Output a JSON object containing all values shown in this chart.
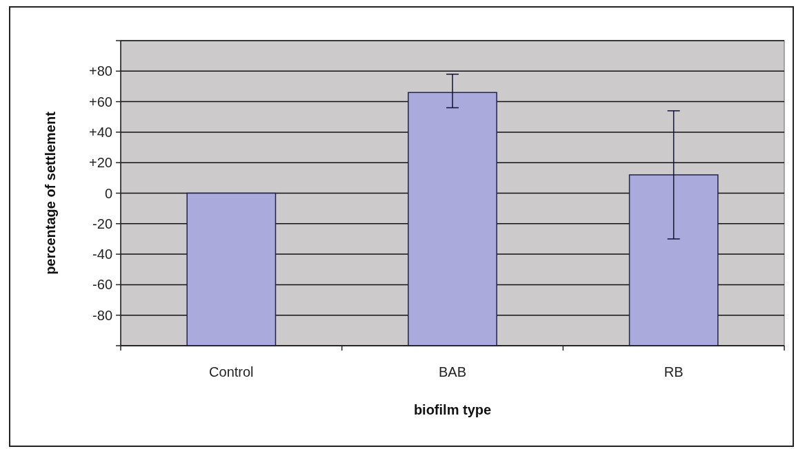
{
  "chart_data": {
    "type": "bar",
    "xlabel": "biofilm type",
    "ylabel": "percentage of settlement",
    "categories": [
      "Control",
      "BAB",
      "RB"
    ],
    "values": [
      100,
      166,
      112
    ],
    "base": [
      -100,
      -100,
      -100
    ],
    "errors": [
      null,
      [
        56,
        78
      ],
      [
        -30,
        54
      ]
    ],
    "color": "#aaaadc",
    "ylim": [
      -100,
      100
    ],
    "yticks": [
      {
        "value": -100,
        "label": null
      },
      {
        "value": -80,
        "label": "-80"
      },
      {
        "value": -60,
        "label": "-60"
      },
      {
        "value": -40,
        "label": "-40"
      },
      {
        "value": -20,
        "label": "-20"
      },
      0,
      {
        "value": 20,
        "label": "+20"
      },
      {
        "value": 40,
        "label": "+40"
      },
      {
        "value": 60,
        "label": "+60"
      },
      {
        "value": 80,
        "label": "+80"
      },
      {
        "value": 100,
        "label": null
      }
    ],
    "grid": "y"
  }
}
